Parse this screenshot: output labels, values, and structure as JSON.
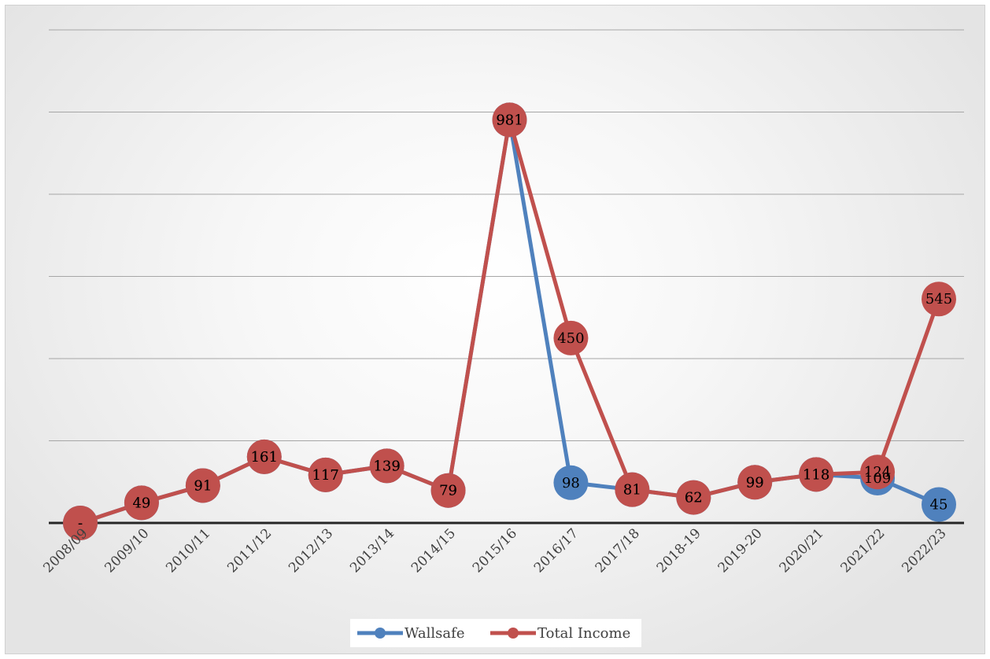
{
  "chart_data": {
    "type": "line",
    "title": "",
    "xlabel": "",
    "ylabel": "",
    "ylim": [
      0,
      1200
    ],
    "grid": true,
    "legend_position": "bottom",
    "categories": [
      "2008/09",
      "2009/10",
      "2010/11",
      "2011/12",
      "2012/13",
      "2013/14",
      "2014/15",
      "2015/16",
      "2016/17",
      "2017/18",
      "2018-19",
      "2019-20",
      "2020/21",
      "2021/22",
      "2022/23"
    ],
    "series": [
      {
        "name": "Wallsafe",
        "color": "#4F81BD",
        "values": [
          0,
          49,
          91,
          161,
          117,
          139,
          79,
          981,
          98,
          81,
          62,
          99,
          118,
          109,
          45
        ],
        "labels": [
          "-",
          "49",
          "91",
          "161",
          "117",
          "139",
          "79",
          "981",
          "98",
          "81",
          "62",
          "99",
          "118",
          "109",
          "45"
        ]
      },
      {
        "name": "Total Income",
        "color": "#C0504D",
        "values": [
          0,
          49,
          91,
          161,
          117,
          139,
          79,
          981,
          450,
          81,
          62,
          99,
          118,
          124,
          545
        ],
        "labels": [
          "-",
          "49",
          "91",
          "161",
          "117",
          "139",
          "79",
          "981",
          "450",
          "81",
          "62",
          "99",
          "118",
          "124",
          "545"
        ]
      }
    ]
  }
}
